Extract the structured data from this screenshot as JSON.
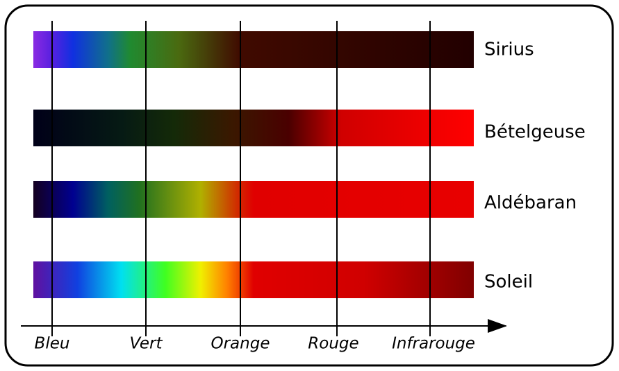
{
  "stars": [
    "Sirius",
    "Bételgeuse",
    "Aldébaran",
    "Soleil"
  ],
  "axis": {
    "labels": [
      "Bleu",
      "Vert",
      "Orange",
      "Rouge",
      "Infrarouge"
    ]
  }
}
